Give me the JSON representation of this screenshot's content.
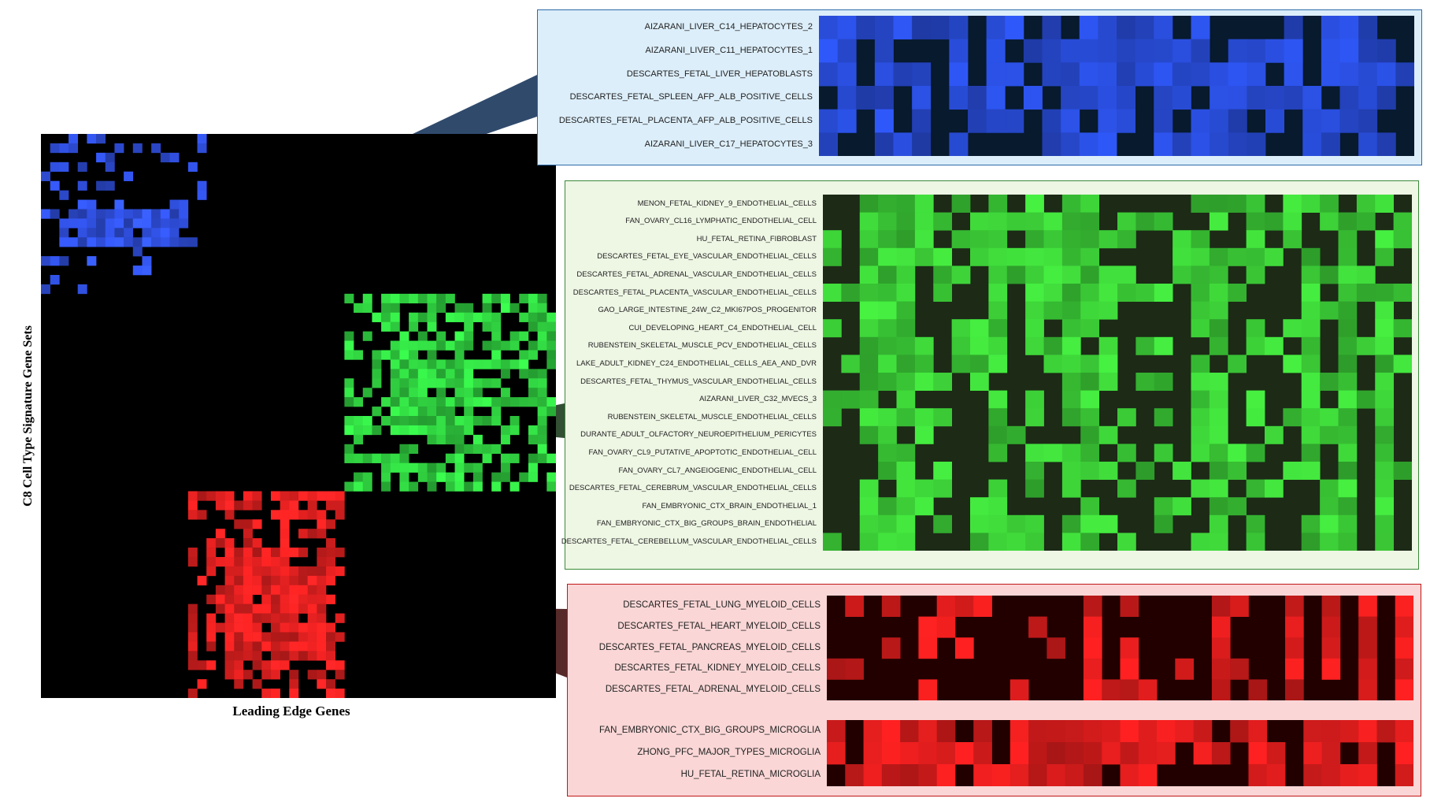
{
  "chart_data": [
    {
      "type": "heatmap",
      "title": "",
      "xlabel": "Leading Edge Genes",
      "ylabel": "C8 Cell Type Signature Gene Sets",
      "rows": 60,
      "cols": 56,
      "grid": false,
      "legend": "none",
      "clusters": [
        {
          "name": "hepatocyte",
          "color": "#3355ee"
        },
        {
          "name": "endothelial",
          "color": "#33dd44"
        },
        {
          "name": "myeloid",
          "color": "#ee2222"
        }
      ]
    },
    {
      "type": "heatmap",
      "title": "",
      "rows": [
        "AIZARANI_LIVER_C14_HEPATOCYTES_2",
        "AIZARANI_LIVER_C11_HEPATOCYTES_1",
        "DESCARTES_FETAL_LIVER_HEPATOBLASTS",
        "DESCARTES_FETAL_SPLEEN_AFP_ALB_POSITIVE_CELLS",
        "DESCARTES_FETAL_PLACENTA_AFP_ALB_POSITIVE_CELLS",
        "AIZARANI_LIVER_C17_HEPATOCYTES_3"
      ],
      "cols": 32,
      "active_color": "#2a4fe0",
      "inactive_color": "#071a2e",
      "grid": false,
      "legend": "none"
    },
    {
      "type": "heatmap",
      "title": "",
      "rows": [
        "MENON_FETAL_KIDNEY_9_ENDOTHELIAL_CELLS",
        "FAN_OVARY_CL16_LYMPHATIC_ENDOTHELIAL_CELL",
        "HU_FETAL_RETINA_FIBROBLAST",
        "DESCARTES_FETAL_EYE_VASCULAR_ENDOTHELIAL_CELLS",
        "DESCARTES_FETAL_ADRENAL_VASCULAR_ENDOTHELIAL_CELLS",
        "DESCARTES_FETAL_PLACENTA_VASCULAR_ENDOTHELIAL_CELLS",
        "GAO_LARGE_INTESTINE_24W_C2_MKI67POS_PROGENITOR",
        "CUI_DEVELOPING_HEART_C4_ENDOTHELIAL_CELL",
        "RUBENSTEIN_SKELETAL_MUSCLE_PCV_ENDOTHELIAL_CELLS",
        "LAKE_ADULT_KIDNEY_C24_ENDOTHELIAL_CELLS_AEA_AND_DVR",
        "DESCARTES_FETAL_THYMUS_VASCULAR_ENDOTHELIAL_CELLS",
        "AIZARANI_LIVER_C32_MVECS_3",
        "RUBENSTEIN_SKELETAL_MUSCLE_ENDOTHELIAL_CELLS",
        "DURANTE_ADULT_OLFACTORY_NEUROEPITHELIUM_PERICYTES",
        "FAN_OVARY_CL9_PUTATIVE_APOPTOTIC_ENDOTHELIAL_CELL",
        "FAN_OVARY_CL7_ANGEIOGENIC_ENDOTHELIAL_CELL",
        "DESCARTES_FETAL_CEREBRUM_VASCULAR_ENDOTHELIAL_CELLS",
        "FAN_EMBRYONIC_CTX_BRAIN_ENDOTHELIAL_1",
        "FAN_EMBRYONIC_CTX_BIG_GROUPS_BRAIN_ENDOTHELIAL",
        "DESCARTES_FETAL_CEREBELLUM_VASCULAR_ENDOTHELIAL_CELLS"
      ],
      "cols": 32,
      "active_color": "#3fd83a",
      "inactive_color": "#1c2a16",
      "grid": false,
      "legend": "none"
    },
    {
      "type": "heatmap",
      "title": "",
      "rows": [
        "DESCARTES_FETAL_LUNG_MYELOID_CELLS",
        "DESCARTES_FETAL_HEART_MYELOID_CELLS",
        "DESCARTES_FETAL_PANCREAS_MYELOID_CELLS",
        "DESCARTES_FETAL_KIDNEY_MYELOID_CELLS",
        "DESCARTES_FETAL_ADRENAL_MYELOID_CELLS"
      ],
      "cols": 32,
      "active_color": "#e81e1e",
      "inactive_color": "#230000",
      "grid": false,
      "legend": "none"
    },
    {
      "type": "heatmap",
      "title": "",
      "rows": [
        "FAN_EMBRYONIC_CTX_BIG_GROUPS_MICROGLIA",
        "ZHONG_PFC_MAJOR_TYPES_MICROGLIA",
        "HU_FETAL_RETINA_MICROGLIA"
      ],
      "cols": 32,
      "active_color": "#e81e1e",
      "inactive_color": "#230000",
      "grid": false,
      "legend": "none"
    }
  ]
}
